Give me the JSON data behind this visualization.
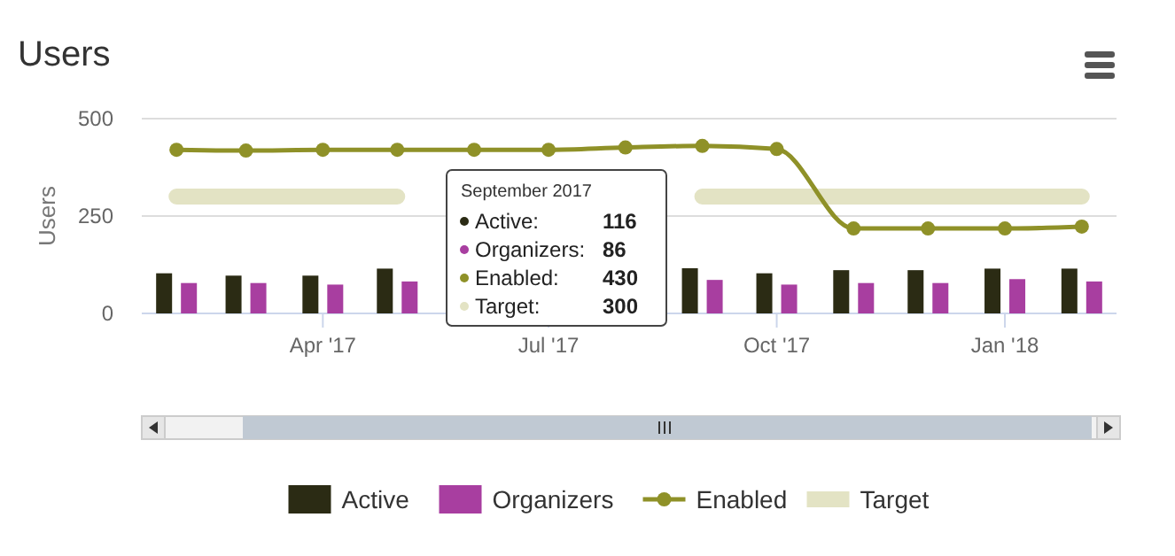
{
  "chart_data": {
    "type": "bar",
    "title": "Users",
    "ylabel": "Users",
    "x": [
      "2017-02",
      "2017-03",
      "2017-04",
      "2017-05",
      "2017-06",
      "2017-07",
      "2017-08",
      "2017-09",
      "2017-10",
      "2017-11",
      "2017-12",
      "2018-01",
      "2018-02"
    ],
    "xlim": [
      "2017-01-18",
      "2018-02-15"
    ],
    "xticks": [
      {
        "value": "2017-04",
        "label": "Apr '17"
      },
      {
        "value": "2017-07",
        "label": "Jul '17"
      },
      {
        "value": "2017-10",
        "label": "Oct '17"
      },
      {
        "value": "2018-01",
        "label": "Jan '18"
      }
    ],
    "ylim": [
      0,
      500
    ],
    "yticks": [
      0,
      250,
      500
    ],
    "grid": "y",
    "legend": "bottom",
    "series": [
      {
        "name": "Active",
        "color": "#2b2b14",
        "values": [
          103,
          97,
          97,
          115,
          null,
          null,
          null,
          116,
          103,
          111,
          111,
          115,
          115
        ]
      },
      {
        "name": "Organizers",
        "color": "#a83ea0",
        "values": [
          78,
          78,
          74,
          82,
          null,
          null,
          null,
          86,
          74,
          78,
          78,
          88,
          82
        ]
      },
      {
        "name": "Enabled",
        "type": "line",
        "color": "#8f9128",
        "marker": "circle",
        "values": [
          420,
          418,
          420,
          420,
          420,
          420,
          426,
          430,
          422,
          218,
          218,
          218,
          223
        ]
      },
      {
        "name": "Target",
        "type": "line",
        "color": "#e3e3c4",
        "marker": "none",
        "values": [
          300,
          300,
          300,
          300,
          null,
          null,
          null,
          300,
          300,
          300,
          300,
          300,
          300
        ]
      }
    ],
    "annotations": [
      "September 2017",
      "Active:",
      "116",
      "Organizers:",
      "86",
      "Enabled:",
      "430",
      "Target:",
      "300"
    ]
  }
}
